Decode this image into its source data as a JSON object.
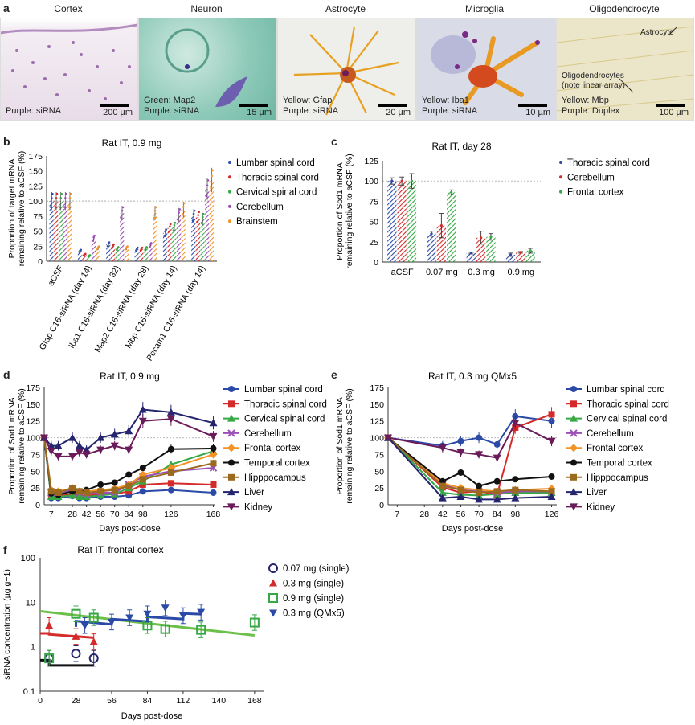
{
  "panel_letters": {
    "a": "a",
    "b": "b",
    "c": "c",
    "d": "d",
    "e": "e",
    "f": "f"
  },
  "images": [
    {
      "title": "Cortex",
      "caption1": "Purple: siRNA",
      "caption2": "",
      "scale": "200 µm",
      "bg": "#eee6ee"
    },
    {
      "title": "Neuron",
      "caption1": "Green: Map2",
      "caption2": "Purple: siRNA",
      "scale": "15 µm",
      "bg": "#9fd2c4"
    },
    {
      "title": "Astrocyte",
      "caption1": "Yellow: Gfap",
      "caption2": "Purple: siRNA",
      "scale": "20 µm",
      "bg": "#efefea"
    },
    {
      "title": "Microglia",
      "caption1": "Yellow: Iba1",
      "caption2": "Purple: siRNA",
      "scale": "10 µm",
      "bg": "#dcdde6"
    },
    {
      "title": "Oligodendrocyte",
      "caption1": "Yellow: Mbp",
      "caption2": "Purple: Duplex",
      "scale": "100 µm",
      "bg": "#ece6c8",
      "note1": "Astrocyte",
      "note2": "Oligodendrocytes",
      "note3": "(note linear array)"
    }
  ],
  "colors": {
    "blue": "#2b4aa8",
    "red": "#d42a2a",
    "green": "#36a845",
    "purple": "#9b4fb5",
    "orange": "#f39227",
    "black": "#111111",
    "brown": "#9b6a1f",
    "navy": "#25246f",
    "plum": "#6a1b5a"
  },
  "chart_data": [
    {
      "id": "b",
      "type": "bar",
      "title": "Rat IT, 0.9 mg",
      "ylabel": "Proportion of target mRNA remaining relative to aCSF (%)",
      "ylim": [
        0,
        175
      ],
      "yticks": [
        0,
        25,
        50,
        75,
        100,
        125,
        150,
        175
      ],
      "categories": [
        "aCSF",
        "Gfap C16-siRNA (day 14)",
        "Iba1 C16-siRNA (day 32)",
        "Map2 C16-siRNA (day 28)",
        "Mbp C16-siRNA (day 14)",
        "Pecam1 C16-siRNA (day 14)"
      ],
      "series": [
        {
          "name": "Lumbar spinal cord",
          "values": [
            100,
            17,
            28,
            20,
            47,
            75
          ]
        },
        {
          "name": "Thoracic spinal cord",
          "values": [
            100,
            11,
            25,
            20,
            55,
            73
          ]
        },
        {
          "name": "Cervical spinal cord",
          "values": [
            100,
            9,
            21,
            21,
            57,
            70
          ]
        },
        {
          "name": "Cerebellum",
          "values": [
            100,
            38,
            80,
            27,
            77,
            120
          ]
        },
        {
          "name": "Brainstem",
          "values": [
            100,
            22,
            22,
            80,
            86,
            135
          ]
        }
      ]
    },
    {
      "id": "c",
      "type": "bar",
      "title": "Rat IT, day 28",
      "ylabel": "Proportion of Sod1 mRNA remaining relative to aCSF (%)",
      "ylim": [
        0,
        125
      ],
      "yticks": [
        0,
        25,
        50,
        75,
        100,
        125
      ],
      "categories": [
        "aCSF",
        "0.07 mg",
        "0.3 mg",
        "0.9 mg"
      ],
      "series": [
        {
          "name": "Thoracic spinal cord",
          "values": [
            100,
            35,
            11,
            9
          ],
          "err": [
            4,
            3,
            1,
            2
          ]
        },
        {
          "name": "Cerebellum",
          "values": [
            100,
            45,
            30,
            12
          ],
          "err": [
            5,
            15,
            8,
            1
          ]
        },
        {
          "name": "Frontal cortex",
          "values": [
            100,
            86,
            31,
            14
          ],
          "err": [
            9,
            3,
            4,
            3
          ]
        }
      ]
    },
    {
      "id": "d",
      "type": "line",
      "title": "Rat IT, 0.9 mg",
      "ylabel": "Proportion of Sod1 mRNA remaining relative to aCSF (%)",
      "xlabel": "Days post-dose",
      "xlim": [
        0,
        170
      ],
      "ylim": [
        0,
        175
      ],
      "xticks": [
        7,
        28,
        42,
        56,
        70,
        84,
        98,
        126,
        168
      ],
      "yticks": [
        0,
        25,
        50,
        75,
        100,
        125,
        150,
        175
      ],
      "x": [
        0,
        7,
        14,
        28,
        35,
        42,
        56,
        70,
        84,
        98,
        126,
        168
      ],
      "series": [
        {
          "name": "Lumbar spinal cord",
          "values": [
            100,
            10,
            10,
            13,
            10,
            10,
            12,
            12,
            14,
            20,
            22,
            18
          ]
        },
        {
          "name": "Thoracic spinal cord",
          "values": [
            100,
            14,
            14,
            15,
            14,
            14,
            15,
            16,
            20,
            30,
            32,
            30
          ]
        },
        {
          "name": "Cervical spinal cord",
          "values": [
            100,
            12,
            12,
            14,
            12,
            12,
            14,
            16,
            25,
            35,
            60,
            80
          ]
        },
        {
          "name": "Cerebellum",
          "values": [
            100,
            18,
            18,
            22,
            18,
            16,
            18,
            18,
            30,
            42,
            50,
            55
          ]
        },
        {
          "name": "Frontal cortex",
          "values": [
            100,
            22,
            20,
            25,
            20,
            20,
            22,
            24,
            30,
            45,
            55,
            75
          ]
        },
        {
          "name": "Temporal cortex",
          "values": [
            100,
            17,
            15,
            20,
            20,
            22,
            30,
            33,
            45,
            55,
            83,
            84
          ]
        },
        {
          "name": "Hipppocampus",
          "values": [
            100,
            20,
            18,
            25,
            20,
            18,
            20,
            22,
            28,
            38,
            48,
            62
          ]
        },
        {
          "name": "Liver",
          "values": [
            100,
            88,
            88,
            100,
            88,
            82,
            100,
            105,
            110,
            142,
            138,
            122
          ]
        },
        {
          "name": "Kidney",
          "values": [
            100,
            80,
            72,
            72,
            78,
            75,
            82,
            88,
            82,
            125,
            128,
            102
          ]
        }
      ]
    },
    {
      "id": "e",
      "type": "line",
      "title": "Rat IT, 0.3 mg QMx5",
      "ylabel": "Proportion of Sod1 mRNA remaining relative to aCSF (%)",
      "xlabel": "Days post-dose",
      "xlim": [
        0,
        130
      ],
      "ylim": [
        0,
        175
      ],
      "xticks": [
        7,
        28,
        42,
        56,
        70,
        84,
        98,
        126
      ],
      "yticks": [
        0,
        25,
        50,
        75,
        100,
        125,
        150,
        175
      ],
      "x": [
        0,
        42,
        56,
        70,
        84,
        98,
        126
      ],
      "series": [
        {
          "name": "Lumbar spinal cord",
          "values": [
            100,
            88,
            95,
            100,
            90,
            132,
            125
          ]
        },
        {
          "name": "Thoracic spinal cord",
          "values": [
            100,
            26,
            18,
            20,
            15,
            115,
            135
          ]
        },
        {
          "name": "Cervical spinal cord",
          "values": [
            100,
            18,
            15,
            14,
            16,
            18,
            18
          ]
        },
        {
          "name": "Cerebellum",
          "values": [
            100,
            30,
            22,
            20,
            18,
            20,
            20
          ]
        },
        {
          "name": "Frontal cortex",
          "values": [
            100,
            32,
            25,
            22,
            20,
            22,
            24
          ]
        },
        {
          "name": "Temporal cortex",
          "values": [
            100,
            35,
            48,
            28,
            35,
            38,
            42
          ]
        },
        {
          "name": "Hipppocampus",
          "values": [
            100,
            28,
            22,
            18,
            20,
            22,
            20
          ]
        },
        {
          "name": "Liver",
          "values": [
            100,
            10,
            12,
            8,
            8,
            10,
            12
          ]
        },
        {
          "name": "Kidney",
          "values": [
            100,
            85,
            78,
            75,
            70,
            122,
            95
          ]
        }
      ]
    },
    {
      "id": "f",
      "type": "scatter",
      "title": "Rat IT, frontal cortex",
      "ylabel": "siRNA concentration (µg g−1)",
      "xlabel": "Days post-dose",
      "xlim": [
        0,
        175
      ],
      "ylim_log": [
        0.1,
        100
      ],
      "xticks": [
        0,
        28,
        56,
        84,
        112,
        140,
        168
      ],
      "yticks": [
        "0.1",
        "1",
        "10",
        "100"
      ],
      "series": [
        {
          "name": "0.07 mg (single)",
          "x": [
            7,
            28,
            42
          ],
          "values": [
            0.55,
            0.7,
            0.55
          ],
          "fit": [
            [
              0,
              0.5
            ],
            [
              7,
              0.5
            ],
            [
              7,
              0.38
            ],
            [
              42,
              0.38
            ]
          ]
        },
        {
          "name": "0.3 mg (single)",
          "x": [
            7,
            28,
            42
          ],
          "values": [
            3.0,
            1.7,
            1.3
          ],
          "fit": [
            [
              0,
              2.0
            ],
            [
              7,
              2.0
            ],
            [
              7,
              1.9
            ],
            [
              42,
              1.6
            ]
          ]
        },
        {
          "name": "0.9 mg (single)",
          "x": [
            7,
            28,
            42,
            84,
            98,
            126,
            168
          ],
          "values": [
            0.55,
            5.5,
            4.5,
            3.0,
            2.5,
            2.4,
            3.5
          ],
          "fit": [
            [
              0,
              6.3
            ],
            [
              168,
              1.8
            ]
          ]
        },
        {
          "name": "0.3 mg (QMx5)",
          "x": [
            35,
            56,
            70,
            84,
            98,
            112,
            126
          ],
          "values": [
            3.0,
            3.6,
            4.5,
            5.5,
            7.5,
            5.0,
            6.0
          ],
          "fit": [
            [
              28,
              2.8
            ],
            [
              28,
              3.8
            ],
            [
              56,
              3.2
            ],
            [
              56,
              4.2
            ],
            [
              84,
              3.7
            ],
            [
              84,
              4.7
            ],
            [
              112,
              4.2
            ],
            [
              112,
              5.6
            ],
            [
              126,
              5.4
            ]
          ]
        }
      ]
    }
  ]
}
